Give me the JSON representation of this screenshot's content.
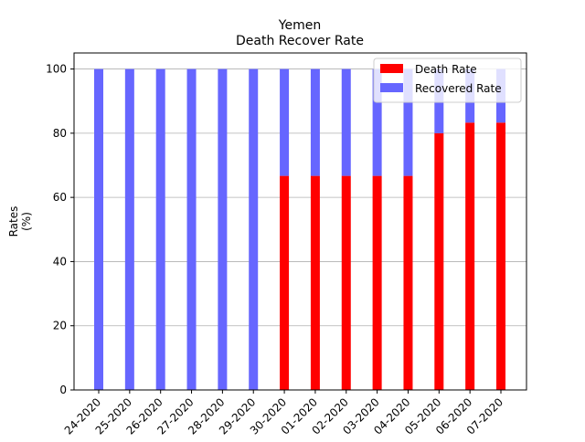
{
  "chart_data": {
    "type": "bar",
    "stacked": true,
    "title": "Yemen",
    "subtitle": "Death Recover Rate",
    "xlabel": "",
    "ylabel": "Rates\n(%)",
    "ylim": [
      0,
      105
    ],
    "yticks": [
      0,
      20,
      40,
      60,
      80,
      100
    ],
    "grid": "y",
    "legend_position": "top-right",
    "categories": [
      "24-2020",
      "25-2020",
      "26-2020",
      "27-2020",
      "28-2020",
      "29-2020",
      "30-2020",
      "01-2020",
      "02-2020",
      "03-2020",
      "04-2020",
      "05-2020",
      "06-2020",
      "07-2020"
    ],
    "series": [
      {
        "name": "Death Rate",
        "color": "#ff0000",
        "values": [
          0,
          0,
          0,
          0,
          0,
          0,
          66.7,
          66.7,
          66.7,
          66.7,
          66.7,
          80,
          83.3,
          83.3
        ]
      },
      {
        "name": "Recovered Rate",
        "color": "#6666ff",
        "values": [
          100,
          100,
          100,
          100,
          100,
          100,
          33.3,
          33.3,
          33.3,
          33.3,
          33.3,
          20,
          16.7,
          16.7
        ]
      }
    ]
  }
}
